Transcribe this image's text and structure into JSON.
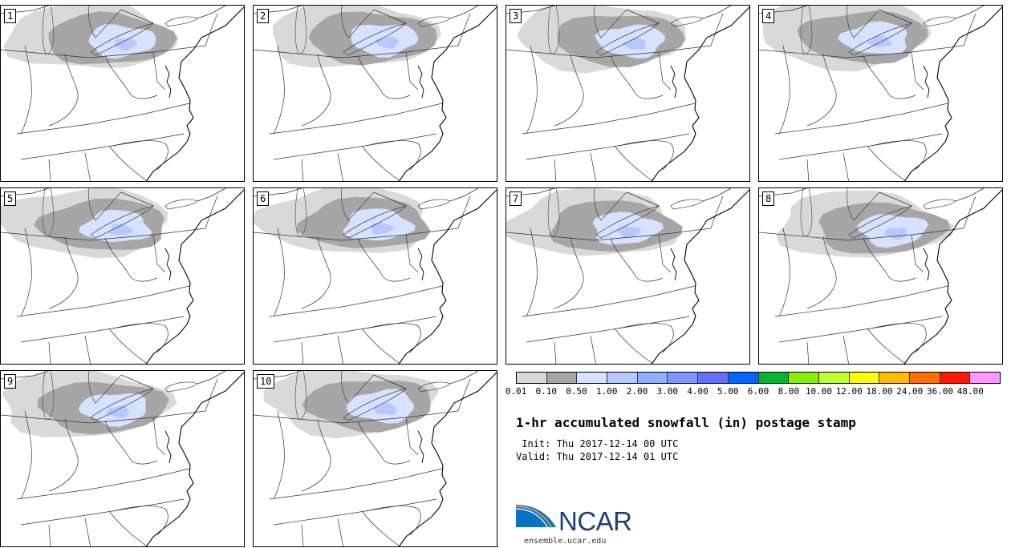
{
  "members": [
    {
      "label": "1"
    },
    {
      "label": "2"
    },
    {
      "label": "3"
    },
    {
      "label": "4"
    },
    {
      "label": "5"
    },
    {
      "label": "6"
    },
    {
      "label": "7"
    },
    {
      "label": "8"
    },
    {
      "label": "9"
    },
    {
      "label": "10"
    }
  ],
  "colorbar": {
    "colors": [
      "#d9d9d9",
      "#a6a6a6",
      "#d6e2ff",
      "#b5c9ff",
      "#8eb2ff",
      "#7f96ff",
      "#6370f7",
      "#0066ff",
      "#00b530",
      "#87f000",
      "#c0ff30",
      "#ffff00",
      "#ffbb00",
      "#ff7000",
      "#ff1a00",
      "#ff99ff"
    ],
    "labels": [
      "0.01",
      "0.10",
      "0.50",
      "1.00",
      "2.00",
      "3.00",
      "4.00",
      "5.00",
      "6.00",
      "8.00",
      "10.00",
      "12.00",
      "18.00",
      "24.00",
      "36.00",
      "48.00"
    ]
  },
  "title": "1-hr accumulated snowfall (in) postage stamp",
  "init_line": " Init: Thu 2017-12-14 00 UTC",
  "valid_line": "Valid: Thu 2017-12-14 01 UTC",
  "logo_text": "NCAR",
  "url": "ensemble.ucar.edu"
}
